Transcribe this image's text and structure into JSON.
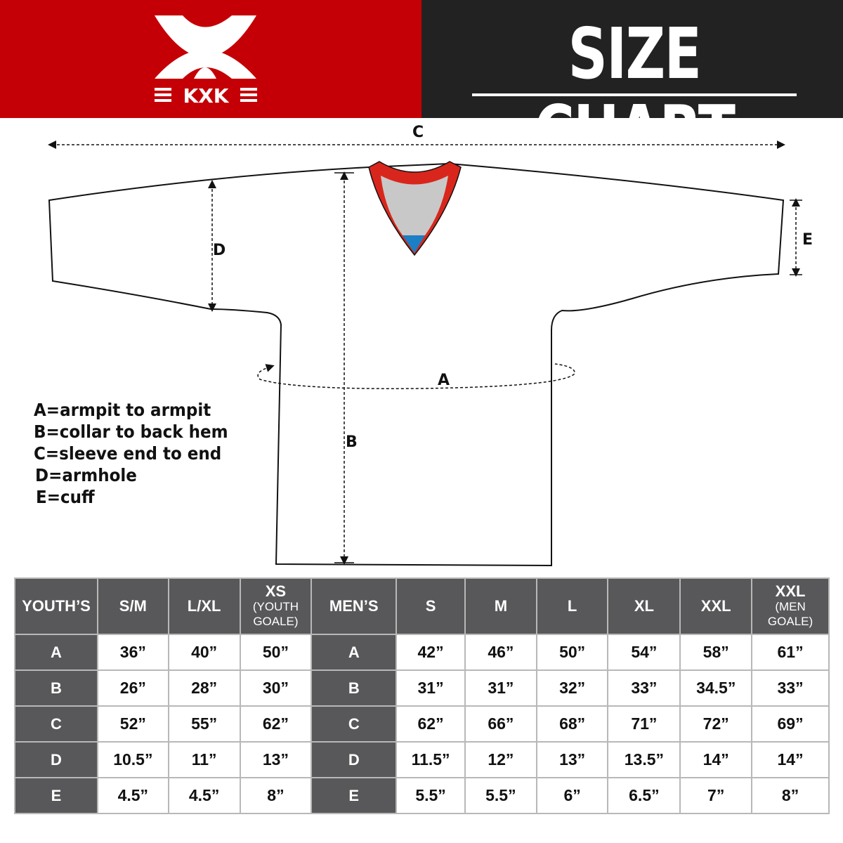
{
  "brand": {
    "logo_text": "KXK",
    "color": "#c40006"
  },
  "header": {
    "title": "SIZE CHART",
    "background": "#222222"
  },
  "diagram": {
    "labels": {
      "A": "A",
      "B": "B",
      "C": "C",
      "D": "D",
      "E": "E"
    },
    "legend": [
      "A=armpit to armpit",
      "B=collar to back hem",
      "C=sleeve end to end",
      "D=armhole",
      "E=cuff"
    ],
    "collar_colors": {
      "trim": "#d9261c",
      "inner": "#c8c8c8",
      "tag": "#1a7fc4"
    }
  },
  "table": {
    "header": [
      {
        "main": "YOUTH’S",
        "sub": ""
      },
      {
        "main": "S/M",
        "sub": ""
      },
      {
        "main": "L/XL",
        "sub": ""
      },
      {
        "main": "XS",
        "sub": "(YOUTH GOALE)"
      },
      {
        "main": "MEN’S",
        "sub": ""
      },
      {
        "main": "S",
        "sub": ""
      },
      {
        "main": "M",
        "sub": ""
      },
      {
        "main": "L",
        "sub": ""
      },
      {
        "main": "XL",
        "sub": ""
      },
      {
        "main": "XXL",
        "sub": ""
      },
      {
        "main": "XXL",
        "sub": "(MEN GOALE)"
      }
    ],
    "rows": [
      {
        "youth_label": "A",
        "youth": [
          "36”",
          "40”",
          "50”"
        ],
        "men_label": "A",
        "men": [
          "42”",
          "46”",
          "50”",
          "54”",
          "58”",
          "61”"
        ]
      },
      {
        "youth_label": "B",
        "youth": [
          "26”",
          "28”",
          "30”"
        ],
        "men_label": "B",
        "men": [
          "31”",
          "31”",
          "32”",
          "33”",
          "34.5”",
          "33”"
        ]
      },
      {
        "youth_label": "C",
        "youth": [
          "52”",
          "55”",
          "62”"
        ],
        "men_label": "C",
        "men": [
          "62”",
          "66”",
          "68”",
          "71”",
          "72”",
          "69”"
        ]
      },
      {
        "youth_label": "D",
        "youth": [
          "10.5”",
          "11”",
          "13”"
        ],
        "men_label": "D",
        "men": [
          "11.5”",
          "12”",
          "13”",
          "13.5”",
          "14”",
          "14”"
        ]
      },
      {
        "youth_label": "E",
        "youth": [
          "4.5”",
          "4.5”",
          "8”"
        ],
        "men_label": "E",
        "men": [
          "5.5”",
          "5.5”",
          "6”",
          "6.5”",
          "7”",
          "8”"
        ]
      }
    ]
  }
}
